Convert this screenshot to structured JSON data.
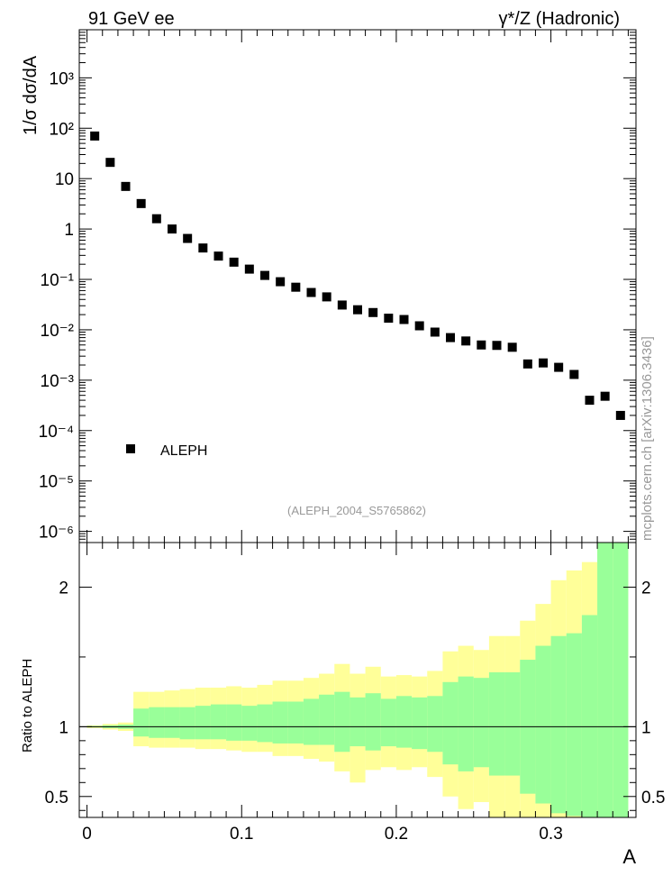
{
  "header": {
    "left": "91 GeV ee",
    "right": "γ*/Z (Hadronic)"
  },
  "side_label": "mcplots.cern.ch [arXiv:1306.3436]",
  "analysis_id": "(ALEPH_2004_S5765862)",
  "colors": {
    "inner_band": "#99ff99",
    "outer_band": "#ffff99",
    "marker": "#000000"
  },
  "chart_data": [
    {
      "type": "scatter",
      "ylabel": "1/σ dσ/dA",
      "yscale": "log",
      "ylim": [
        6e-07,
        9000
      ],
      "xlim": [
        -0.005,
        0.355
      ],
      "legend": {
        "entries": [
          "ALEPH"
        ],
        "placement": "lower-left"
      },
      "series": [
        {
          "name": "ALEPH",
          "marker": "square",
          "x": [
            0.005,
            0.015,
            0.025,
            0.035,
            0.045,
            0.055,
            0.065,
            0.075,
            0.085,
            0.095,
            0.105,
            0.115,
            0.125,
            0.135,
            0.145,
            0.155,
            0.165,
            0.175,
            0.185,
            0.195,
            0.205,
            0.215,
            0.225,
            0.235,
            0.245,
            0.255,
            0.265,
            0.275,
            0.285,
            0.295,
            0.305,
            0.315,
            0.325,
            0.335,
            0.345
          ],
          "y": [
            70,
            21,
            7,
            3.2,
            1.6,
            1.0,
            0.65,
            0.42,
            0.29,
            0.22,
            0.16,
            0.12,
            0.09,
            0.07,
            0.055,
            0.045,
            0.031,
            0.025,
            0.022,
            0.017,
            0.016,
            0.012,
            0.009,
            0.007,
            0.006,
            0.005,
            0.0049,
            0.0045,
            0.0021,
            0.0022,
            0.0018,
            0.0013,
            0.0004,
            0.00048,
            0.0002
          ]
        }
      ],
      "y_ticks": [
        "10⁻⁶",
        "10⁻⁵",
        "10⁻⁴",
        "10⁻³",
        "10⁻²",
        "10⁻¹",
        "1",
        "10",
        "10²",
        "10³"
      ]
    },
    {
      "type": "area",
      "ylabel": "Ratio to ALEPH",
      "xlabel": "A",
      "ylim": [
        0.35,
        2.32
      ],
      "xlim": [
        -0.005,
        0.355
      ],
      "reference_line": 1,
      "x_edges": [
        0.0,
        0.01,
        0.02,
        0.03,
        0.04,
        0.05,
        0.06,
        0.07,
        0.08,
        0.09,
        0.1,
        0.11,
        0.12,
        0.13,
        0.14,
        0.15,
        0.16,
        0.17,
        0.18,
        0.19,
        0.2,
        0.21,
        0.22,
        0.23,
        0.24,
        0.25,
        0.26,
        0.27,
        0.28,
        0.29,
        0.3,
        0.31,
        0.32,
        0.33,
        0.34,
        0.35
      ],
      "series": [
        {
          "band": "outer",
          "upper": [
            1.01,
            1.02,
            1.03,
            1.25,
            1.25,
            1.26,
            1.27,
            1.28,
            1.28,
            1.29,
            1.28,
            1.3,
            1.33,
            1.33,
            1.35,
            1.38,
            1.45,
            1.38,
            1.43,
            1.36,
            1.37,
            1.36,
            1.4,
            1.54,
            1.58,
            1.55,
            1.65,
            1.65,
            1.76,
            1.88,
            2.05,
            2.12,
            2.18,
            2.32,
            2.32
          ],
          "lower": [
            0.99,
            0.98,
            0.97,
            0.86,
            0.85,
            0.85,
            0.85,
            0.84,
            0.84,
            0.83,
            0.82,
            0.82,
            0.79,
            0.79,
            0.77,
            0.75,
            0.68,
            0.6,
            0.69,
            0.71,
            0.69,
            0.71,
            0.64,
            0.5,
            0.41,
            0.46,
            0.35,
            0.35,
            0.35,
            0.35,
            0.35,
            0.35,
            0.35,
            0.35,
            0.35
          ]
        },
        {
          "band": "inner",
          "upper": [
            1.005,
            1.01,
            1.015,
            1.13,
            1.14,
            1.14,
            1.14,
            1.15,
            1.16,
            1.16,
            1.15,
            1.16,
            1.18,
            1.18,
            1.2,
            1.23,
            1.25,
            1.21,
            1.24,
            1.2,
            1.22,
            1.21,
            1.22,
            1.32,
            1.36,
            1.35,
            1.39,
            1.39,
            1.48,
            1.58,
            1.65,
            1.67,
            1.8,
            2.32,
            2.32
          ],
          "lower": [
            0.995,
            0.99,
            0.985,
            0.93,
            0.92,
            0.92,
            0.91,
            0.91,
            0.91,
            0.9,
            0.9,
            0.89,
            0.88,
            0.88,
            0.87,
            0.87,
            0.82,
            0.86,
            0.83,
            0.86,
            0.85,
            0.84,
            0.82,
            0.73,
            0.68,
            0.71,
            0.65,
            0.65,
            0.52,
            0.45,
            0.38,
            0.36,
            0.35,
            0.35,
            0.35
          ]
        }
      ],
      "y_ticks": [
        "0.5",
        "1",
        "2"
      ],
      "x_ticks": [
        "0",
        "0.1",
        "0.2",
        "0.3"
      ]
    }
  ]
}
